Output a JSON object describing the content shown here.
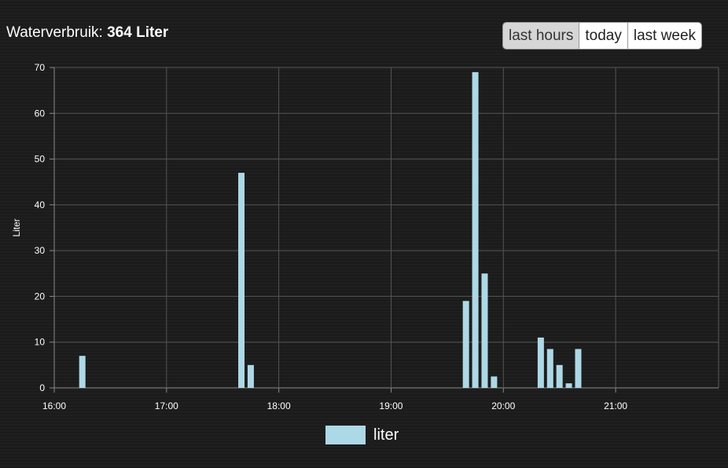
{
  "header": {
    "title_prefix": "Waterverbruik:",
    "title_value": "364 Liter"
  },
  "range_buttons": [
    {
      "label": "last hours",
      "active": true
    },
    {
      "label": "today",
      "active": false
    },
    {
      "label": "last week",
      "active": false
    }
  ],
  "chart_data": {
    "type": "bar",
    "ylabel": "Liter",
    "ylim": [
      0,
      70
    ],
    "yticks": [
      0,
      10,
      20,
      30,
      40,
      50,
      60,
      70
    ],
    "xlim": [
      "16:00",
      "21:55"
    ],
    "xticks": [
      "16:00",
      "17:00",
      "18:00",
      "19:00",
      "20:00",
      "21:00"
    ],
    "grid": true,
    "legend_position": "bottom",
    "series": [
      {
        "name": "liter",
        "color": "#add8e6",
        "points": [
          {
            "x": "16:15",
            "y": 7
          },
          {
            "x": "17:40",
            "y": 47
          },
          {
            "x": "17:45",
            "y": 5
          },
          {
            "x": "19:40",
            "y": 19
          },
          {
            "x": "19:45",
            "y": 69
          },
          {
            "x": "19:50",
            "y": 25
          },
          {
            "x": "19:55",
            "y": 2.5
          },
          {
            "x": "20:20",
            "y": 11
          },
          {
            "x": "20:25",
            "y": 8.5
          },
          {
            "x": "20:30",
            "y": 5
          },
          {
            "x": "20:35",
            "y": 1
          },
          {
            "x": "20:40",
            "y": 8.5
          }
        ]
      }
    ]
  }
}
